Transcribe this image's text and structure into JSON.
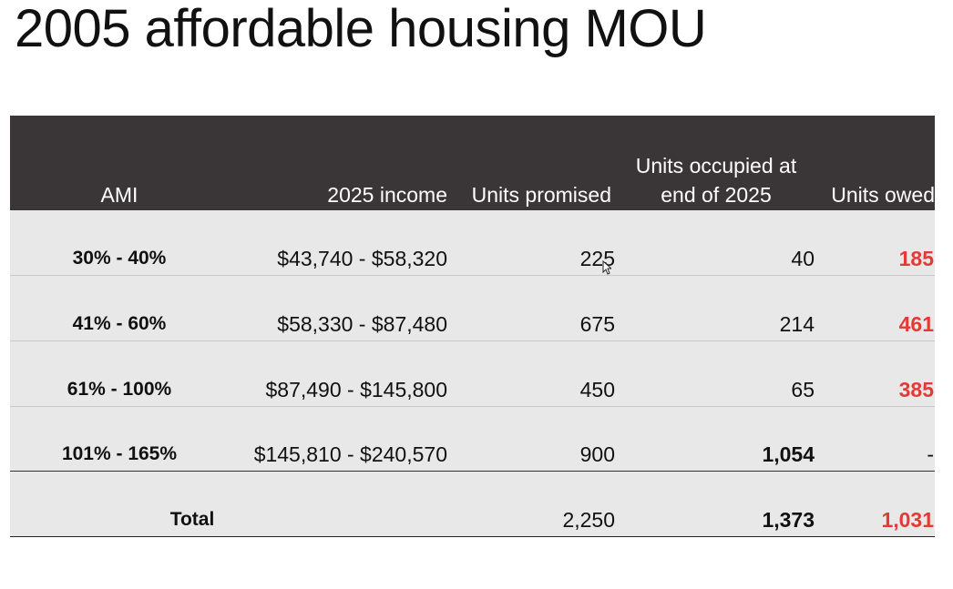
{
  "title": "2005 affordable housing MOU",
  "table": {
    "headers": {
      "ami": "AMI",
      "income": "2025 income",
      "promised": "Units promised",
      "occupied_line1": "Units occupied at",
      "occupied_line2": "end of 2025",
      "owed": "Units owed"
    },
    "rows": [
      {
        "ami": "30% -  40%",
        "income": "$43,740 - $58,320",
        "promised": "225",
        "occupied": "40",
        "owed": "185"
      },
      {
        "ami": "41% - 60%",
        "income": "$58,330 - $87,480",
        "promised": "675",
        "occupied": "214",
        "owed": "461"
      },
      {
        "ami": "61% - 100%",
        "income": "$87,490 - $145,800",
        "promised": "450",
        "occupied": "65",
        "owed": "385"
      },
      {
        "ami": "101% - 165%",
        "income": "$145,810 - $240,570",
        "promised": "900",
        "occupied": "1,054",
        "owed": "-"
      }
    ],
    "total": {
      "label": "Total",
      "promised": "2,250",
      "occupied": "1,373",
      "owed": "1,031"
    }
  },
  "colors": {
    "header_bg": "#3a3637",
    "table_bg": "#e9e8e9",
    "owed_red": "#e23b35"
  },
  "icons": {
    "cursor": "mouse-pointer-icon"
  }
}
